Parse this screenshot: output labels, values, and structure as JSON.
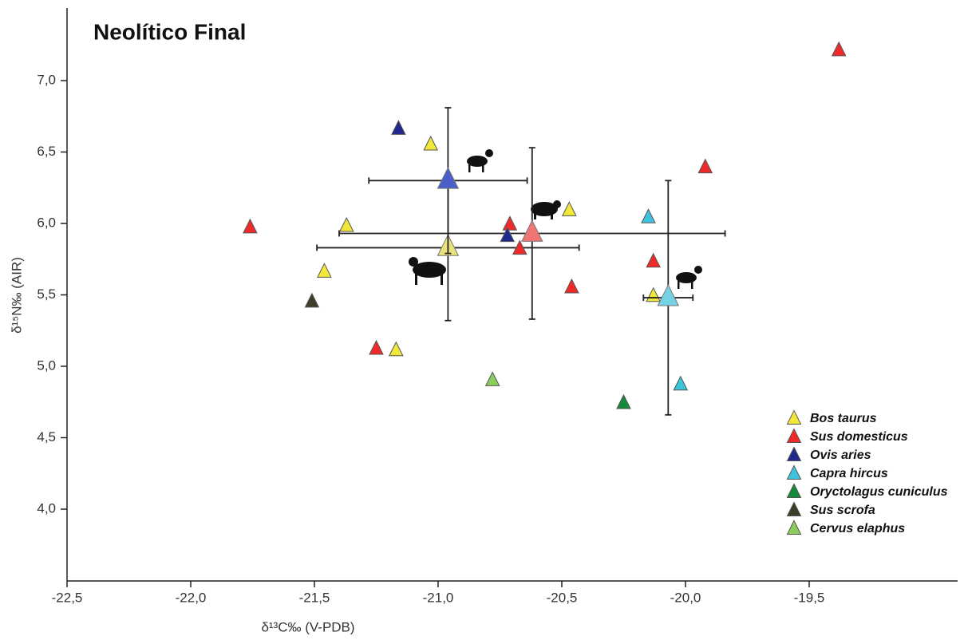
{
  "chart_data": {
    "type": "scatter",
    "title": "Neolítico Final",
    "x_label": "δ¹³C‰ (V-PDB)",
    "y_label": "δ¹⁵N‰ (AIR)",
    "xlim": [
      -22.5,
      -18.9
    ],
    "ylim": [
      3.5,
      7.5
    ],
    "xticks": [
      {
        "value": -22.5,
        "label": "-22,5"
      },
      {
        "value": -22,
        "label": "-22,0"
      },
      {
        "value": -21.5,
        "label": "-21,5"
      },
      {
        "value": -21,
        "label": "-21,0"
      },
      {
        "value": -20.5,
        "label": "-20,5"
      },
      {
        "value": -20,
        "label": "-20,0"
      },
      {
        "value": -19.5,
        "label": "-19,5"
      }
    ],
    "yticks": [
      {
        "value": 4,
        "label": "4,0"
      },
      {
        "value": 4.5,
        "label": "4,5"
      },
      {
        "value": 5,
        "label": "5,0"
      },
      {
        "value": 5.5,
        "label": "5,5"
      },
      {
        "value": 6,
        "label": "6,0"
      },
      {
        "value": 6.5,
        "label": "6,5"
      },
      {
        "value": 7,
        "label": "7,0"
      }
    ],
    "grid": false,
    "legend": "lower right",
    "series": [
      {
        "name": "Bos taurus",
        "color": "#f2e83a",
        "mean_color": "#e9e27a",
        "x": [
          -21.03,
          -21.37,
          -21.46,
          -21.17,
          -20.47,
          -20.13
        ],
        "y": [
          6.55,
          5.98,
          5.66,
          5.11,
          6.09,
          5.49
        ],
        "mean": {
          "x": -20.96,
          "y": 5.83,
          "x_error": 0.53,
          "y_error": 0.51
        }
      },
      {
        "name": "Sus domesticus",
        "color": "#ee2a2a",
        "mean_color": "#f07575",
        "x": [
          -19.38,
          -19.92,
          -21.76,
          -20.71,
          -20.67,
          -20.13,
          -20.46,
          -21.25
        ],
        "y": [
          7.21,
          6.39,
          5.97,
          5.99,
          5.82,
          5.73,
          5.55,
          5.12
        ],
        "mean": {
          "x": -20.62,
          "y": 5.93,
          "x_error": 0.78,
          "y_error": 0.6
        }
      },
      {
        "name": "Ovis aries",
        "color": "#1f2a8c",
        "mean_color": "#4a5fc8",
        "x": [
          -21.16,
          -20.72
        ],
        "y": [
          6.66,
          5.91
        ],
        "mean": {
          "x": -20.96,
          "y": 6.3,
          "x_error": 0.32,
          "y_error": 0.51
        }
      },
      {
        "name": "Capra hircus",
        "color": "#3cc4dc",
        "mean_color": "#74d2e2",
        "x": [
          -20.15,
          -20.02
        ],
        "y": [
          6.04,
          4.87
        ],
        "mean": {
          "x": -20.07,
          "y": 5.48,
          "x_error": 0.1,
          "y_error": 0.82
        }
      },
      {
        "name": "Oryctolagus cuniculus",
        "color": "#138a3a",
        "x": [
          -20.25
        ],
        "y": [
          4.74
        ]
      },
      {
        "name": "Sus scrofa",
        "color": "#3d3d2a",
        "x": [
          -21.51
        ],
        "y": [
          5.45
        ]
      },
      {
        "name": "Cervus elaphus",
        "color": "#8ccc5a",
        "x": [
          -20.78
        ],
        "y": [
          4.9
        ]
      }
    ]
  }
}
